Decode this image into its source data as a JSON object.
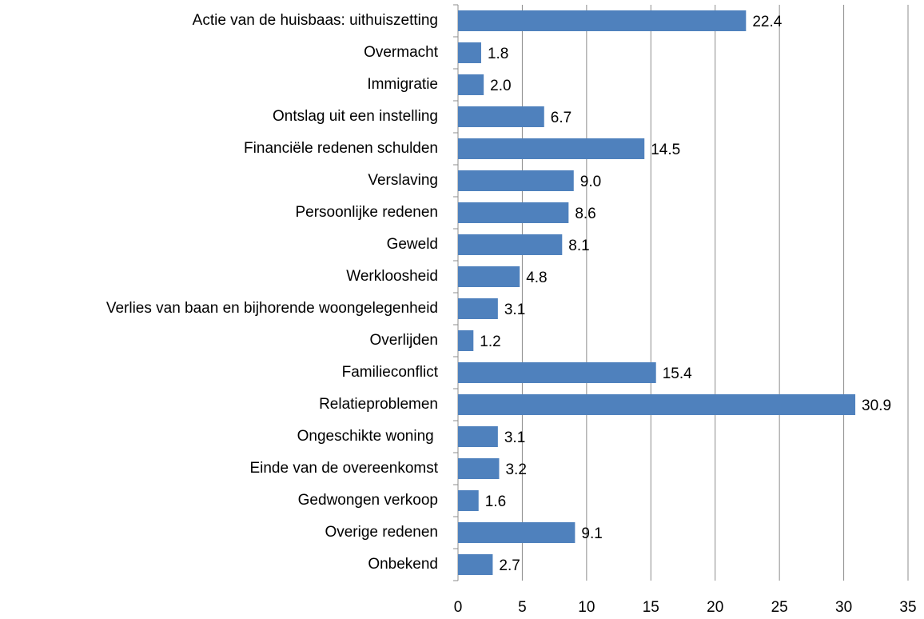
{
  "chart_data": {
    "type": "bar",
    "orientation": "horizontal",
    "categories": [
      "Actie van de huisbaas: uithuiszetting",
      "Overmacht",
      "Immigratie",
      "Ontslag uit een instelling",
      "Financiële redenen schulden",
      "Verslaving",
      "Persoonlijke redenen",
      "Geweld",
      "Werkloosheid",
      "Verlies van baan en bijhorende woongelegenheid",
      "Overlijden",
      "Familieconflict",
      "Relatieproblemen",
      "Ongeschikte woning ",
      "Einde van de overeenkomst",
      "Gedwongen verkoop",
      "Overige redenen",
      "Onbekend"
    ],
    "values": [
      22.4,
      1.8,
      2.0,
      6.7,
      14.5,
      9.0,
      8.6,
      8.1,
      4.8,
      3.1,
      1.2,
      15.4,
      30.9,
      3.1,
      3.2,
      1.6,
      9.1,
      2.7
    ],
    "value_labels": [
      "22.4",
      "1.8",
      "2.0",
      "6.7",
      "14.5",
      "9.0",
      "8.6",
      "8.1",
      "4.8",
      "3.1",
      "1.2",
      "15.4",
      "30.9",
      "3.1",
      "3.2",
      "1.6",
      "9.1",
      "2.7"
    ],
    "color": "#4f81bd",
    "xlim": [
      0,
      35
    ],
    "xticks": [
      0,
      5,
      10,
      15,
      20,
      25,
      30,
      35
    ],
    "grid": true
  }
}
